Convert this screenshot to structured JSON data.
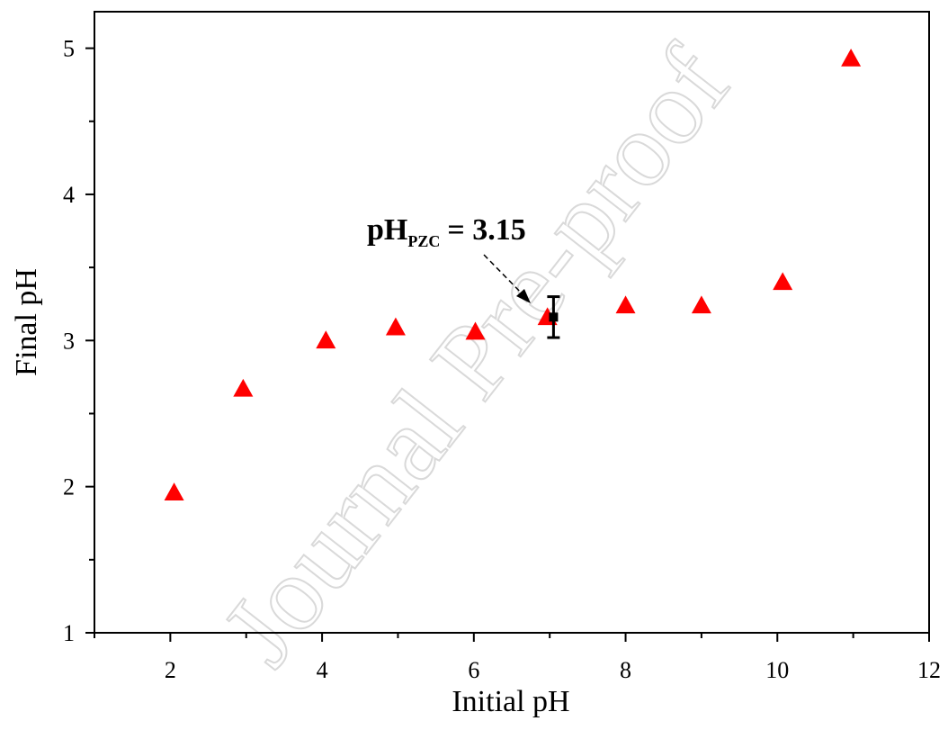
{
  "chart_data": {
    "type": "scatter",
    "xlabel": "Initial pH",
    "ylabel": "Final pH",
    "x": [
      2.05,
      2.96,
      4.05,
      4.97,
      6.02,
      6.97,
      8.0,
      9.0,
      10.07,
      10.97
    ],
    "series": [
      {
        "color": "#ff0000",
        "values": [
          1.96,
          2.67,
          3.0,
          3.09,
          3.06,
          3.16,
          3.24,
          3.24,
          3.4,
          4.93
        ]
      }
    ],
    "error_bar": {
      "x": 7.05,
      "y": 3.16,
      "error": 0.14
    },
    "annotation": {
      "main": "pH",
      "sub": "PZC",
      "rest": "= 3.15"
    },
    "xlim": [
      1,
      12
    ],
    "xticks": [
      2,
      4,
      6,
      8,
      10,
      12
    ],
    "xminorticks": [
      1,
      3,
      5,
      7,
      9,
      11
    ],
    "ylim": [
      1,
      5.25
    ],
    "yticks": [
      1,
      2,
      3,
      4,
      5
    ],
    "yminorticks": [
      1.5,
      2.5,
      3.5,
      4.5
    ],
    "grid": false,
    "watermark": "Journal Pre-proof"
  }
}
